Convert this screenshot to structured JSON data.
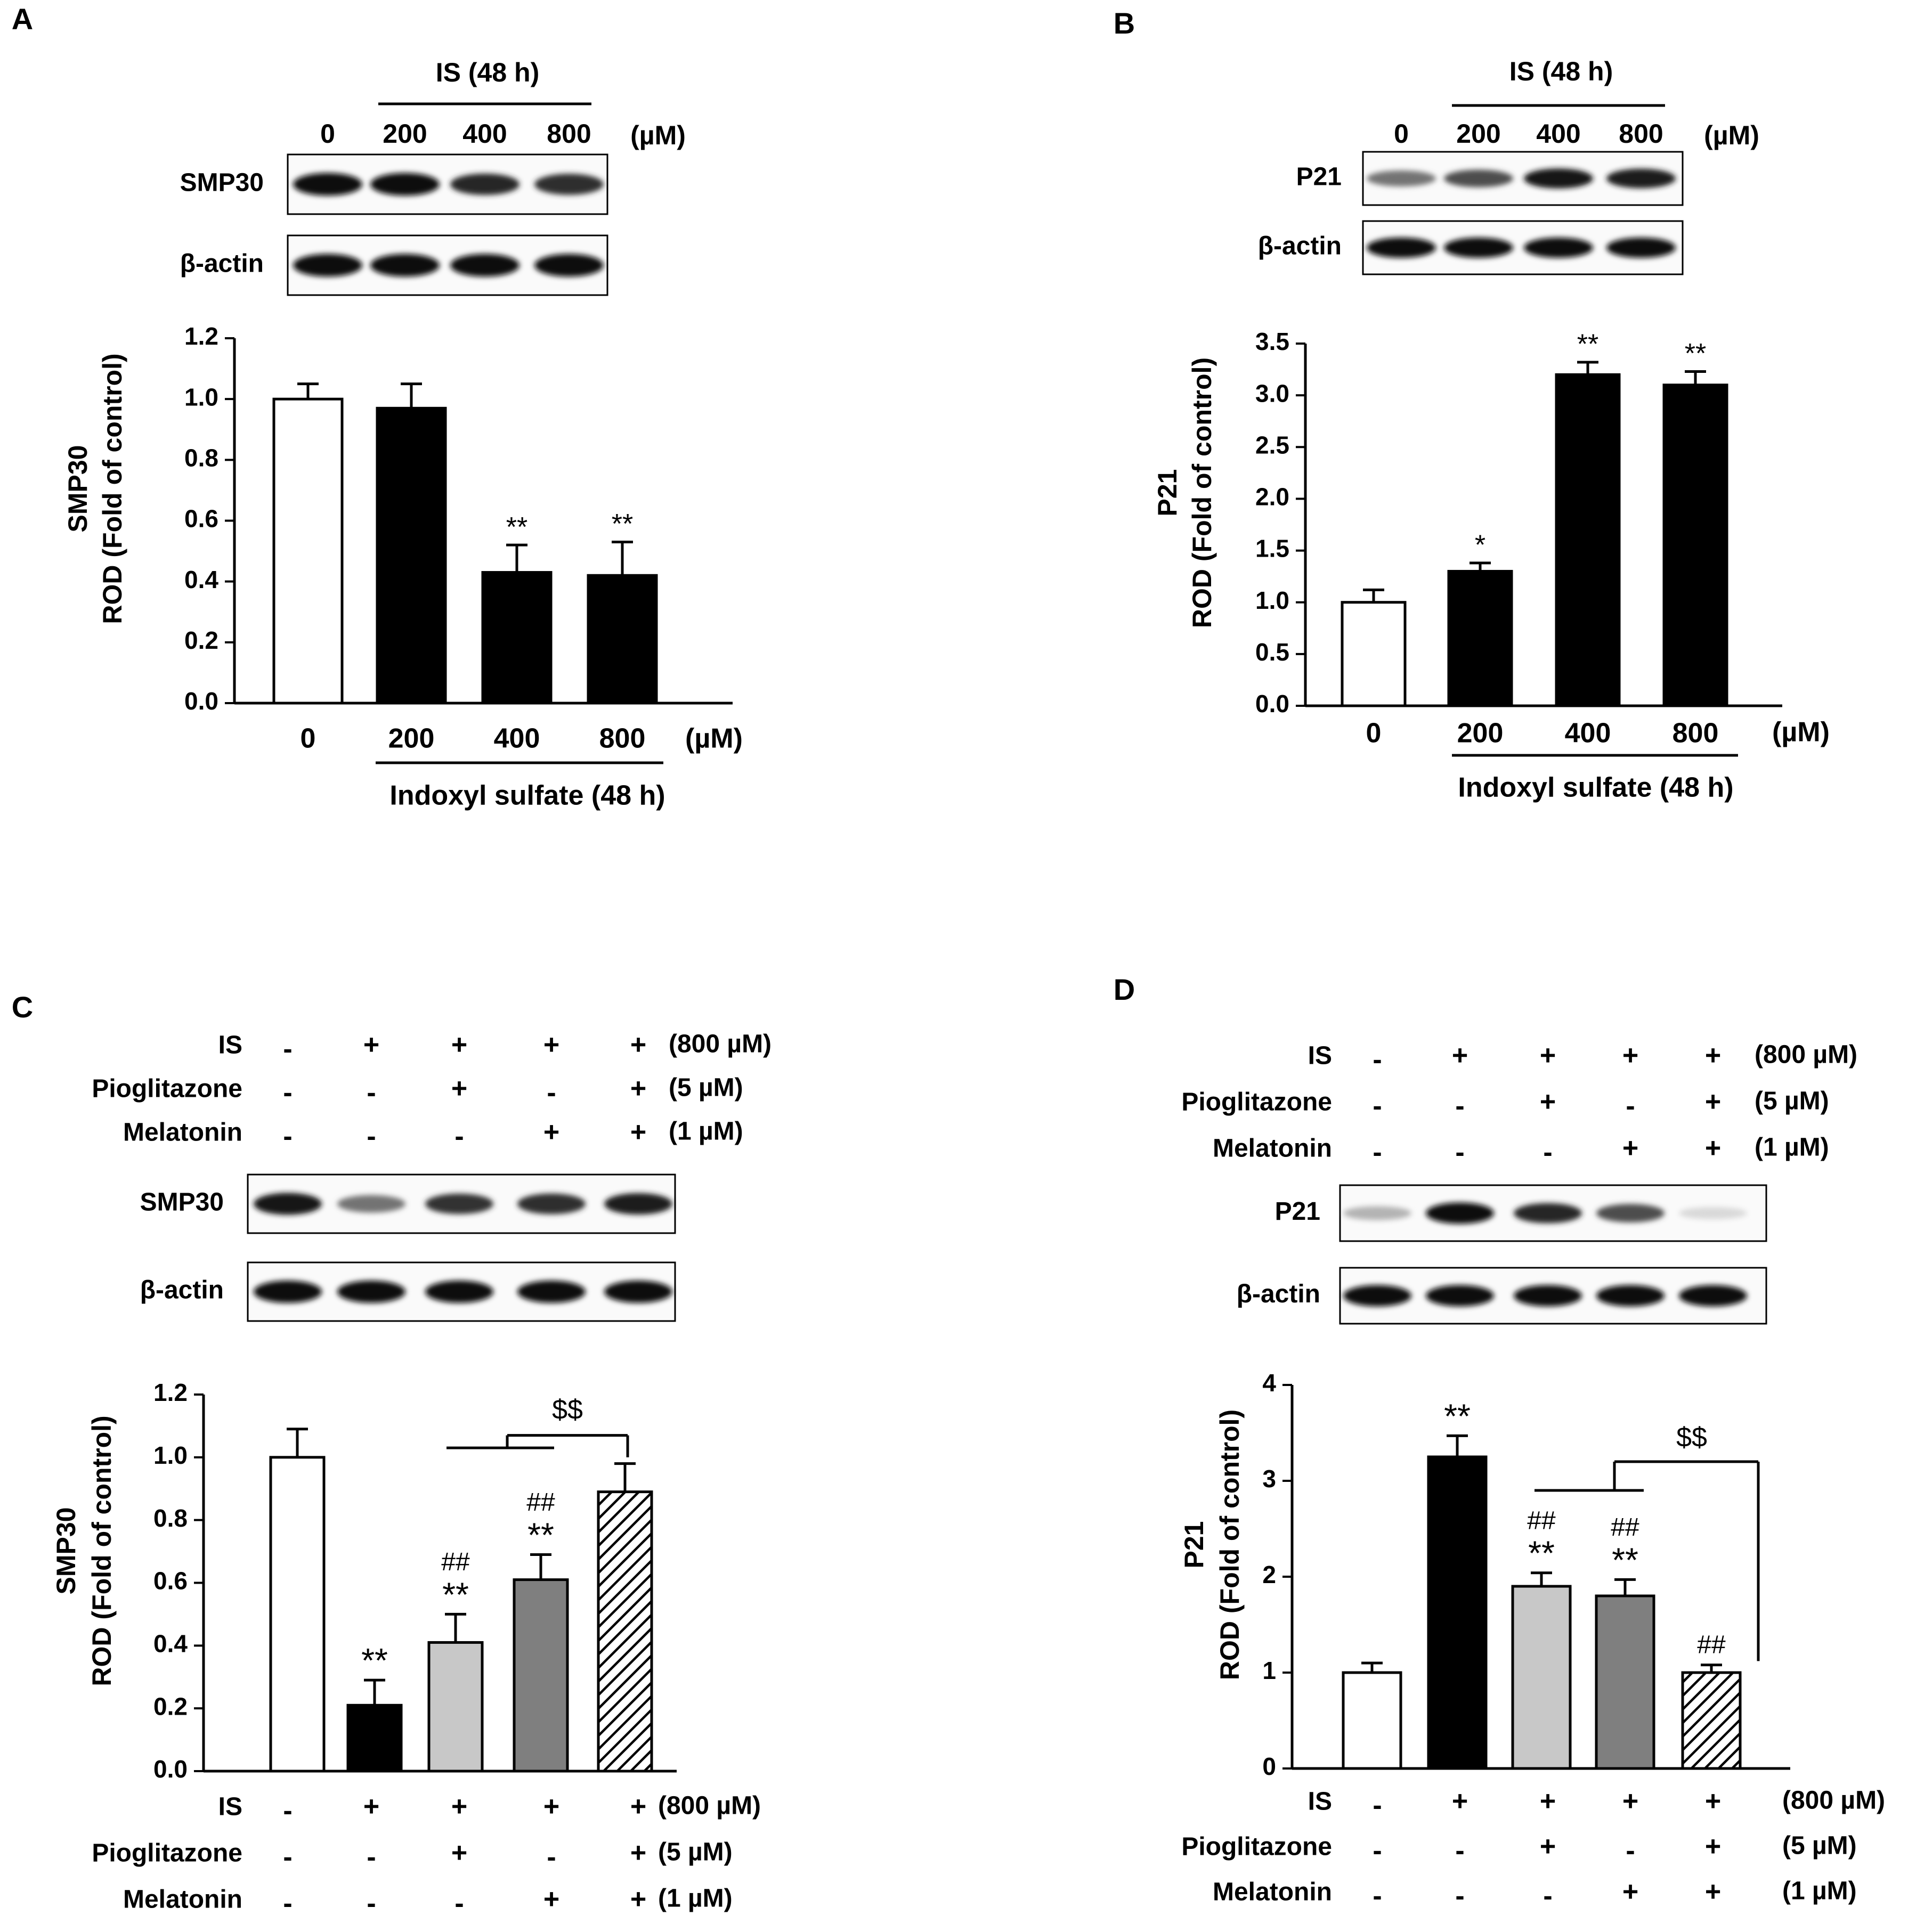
{
  "panels": [
    {
      "letter": "A",
      "blot": {
        "header_label": "IS (48 h)",
        "lane_labels": [
          "0",
          "200",
          "400",
          "800"
        ],
        "unit_label": "(µM)",
        "row_labels": [
          "SMP30",
          "β-actin"
        ],
        "band_intensity": [
          [
            0.95,
            0.95,
            0.85,
            0.82
          ],
          [
            0.95,
            0.95,
            0.95,
            0.95
          ]
        ]
      },
      "x_group_label": "Indoxyl sulfate (48 h)",
      "x_unit_label": "(µM)"
    },
    {
      "letter": "B",
      "blot": {
        "header_label": "IS (48 h)",
        "lane_labels": [
          "0",
          "200",
          "400",
          "800"
        ],
        "unit_label": "(µM)",
        "row_labels": [
          "P21",
          "β-actin"
        ],
        "band_intensity": [
          [
            0.55,
            0.7,
            0.92,
            0.88
          ],
          [
            0.95,
            0.95,
            0.95,
            0.95
          ]
        ]
      },
      "x_group_label": "Indoxyl sulfate (48 h)",
      "x_unit_label": "(µM)"
    },
    {
      "letter": "C",
      "treatment": {
        "rows": [
          {
            "label": "IS",
            "signs": [
              "-",
              "+",
              "+",
              "+",
              "+"
            ],
            "dose": "(800 µM)"
          },
          {
            "label": "Pioglitazone",
            "signs": [
              "-",
              "-",
              "+",
              "-",
              "+"
            ],
            "dose": "(5 µM)"
          },
          {
            "label": "Melatonin",
            "signs": [
              "-",
              "-",
              "-",
              "+",
              "+"
            ],
            "dose": "(1 µM)"
          }
        ]
      },
      "blot": {
        "row_labels": [
          "SMP30",
          "β-actin"
        ],
        "band_intensity": [
          [
            0.92,
            0.55,
            0.8,
            0.82,
            0.88
          ],
          [
            0.95,
            0.95,
            0.95,
            0.95,
            0.95
          ]
        ]
      },
      "bottom_treatment": {
        "rows": [
          {
            "label": "IS",
            "signs": [
              "-",
              "+",
              "+",
              "+",
              "+"
            ],
            "dose": "(800 µM)"
          },
          {
            "label": "Pioglitazone",
            "signs": [
              "-",
              "-",
              "+",
              "-",
              "+"
            ],
            "dose": "(5 µM)"
          },
          {
            "label": "Melatonin",
            "signs": [
              "-",
              "-",
              "-",
              "+",
              "+"
            ],
            "dose": "(1 µM)"
          }
        ]
      }
    },
    {
      "letter": "D",
      "treatment": {
        "rows": [
          {
            "label": "IS",
            "signs": [
              "-",
              "+",
              "+",
              "+",
              "+"
            ],
            "dose": "(800 µM)"
          },
          {
            "label": "Pioglitazone",
            "signs": [
              "-",
              "-",
              "+",
              "-",
              "+"
            ],
            "dose": "(5 µM)"
          },
          {
            "label": "Melatonin",
            "signs": [
              "-",
              "-",
              "-",
              "+",
              "+"
            ],
            "dose": "(1 µM)"
          }
        ]
      },
      "blot": {
        "row_labels": [
          "P21",
          "β-actin"
        ],
        "band_intensity": [
          [
            0.3,
            0.95,
            0.85,
            0.7,
            0.15
          ],
          [
            0.95,
            0.95,
            0.95,
            0.95,
            0.95
          ]
        ]
      },
      "bottom_treatment": {
        "rows": [
          {
            "label": "IS",
            "signs": [
              "-",
              "+",
              "+",
              "+",
              "+"
            ],
            "dose": "(800 µM)"
          },
          {
            "label": "Pioglitazone",
            "signs": [
              "-",
              "-",
              "+",
              "-",
              "+"
            ],
            "dose": "(5 µM)"
          },
          {
            "label": "Melatonin",
            "signs": [
              "-",
              "-",
              "-",
              "+",
              "+"
            ],
            "dose": "(1 µM)"
          }
        ]
      }
    }
  ],
  "chart_data": [
    {
      "panel": "A",
      "type": "bar",
      "categories": [
        "0",
        "200",
        "400",
        "800"
      ],
      "values": [
        1.0,
        0.97,
        0.43,
        0.42
      ],
      "errors": [
        0.05,
        0.08,
        0.09,
        0.11
      ],
      "annotations": [
        "",
        "",
        "**",
        "**"
      ],
      "bar_colors": [
        "#ffffff",
        "#000000",
        "#000000",
        "#000000"
      ],
      "ylabel_line1": "SMP30",
      "ylabel_line2": "ROD (Fold of control)",
      "ylim": [
        0,
        1.2
      ],
      "yticks": [
        "0.0",
        "0.2",
        "0.4",
        "0.6",
        "0.8",
        "1.0",
        "1.2"
      ]
    },
    {
      "panel": "B",
      "type": "bar",
      "categories": [
        "0",
        "200",
        "400",
        "800"
      ],
      "values": [
        1.0,
        1.3,
        3.2,
        3.1
      ],
      "errors": [
        0.12,
        0.08,
        0.12,
        0.13
      ],
      "annotations": [
        "",
        "*",
        "**",
        "**"
      ],
      "bar_colors": [
        "#ffffff",
        "#000000",
        "#000000",
        "#000000"
      ],
      "ylabel_line1": "P21",
      "ylabel_line2": "ROD (Fold of control)",
      "ylim": [
        0,
        3.5
      ],
      "yticks": [
        "0.0",
        "0.5",
        "1.0",
        "1.5",
        "2.0",
        "2.5",
        "3.0",
        "3.5"
      ]
    },
    {
      "panel": "C",
      "type": "bar",
      "values": [
        1.0,
        0.21,
        0.41,
        0.61,
        0.89
      ],
      "errors": [
        0.09,
        0.08,
        0.09,
        0.08,
        0.09
      ],
      "annotations_top": [
        "",
        "",
        "##",
        "##",
        ""
      ],
      "annotations_bottom": [
        "",
        "**",
        "**",
        "**",
        ""
      ],
      "bar_colors": [
        "#ffffff",
        "#000000",
        "#c8c8c8",
        "#7f7f7f",
        "hatch"
      ],
      "bracket_label": "$$",
      "ylabel_line1": "SMP30",
      "ylabel_line2": "ROD (Fold of control)",
      "ylim": [
        0,
        1.2
      ],
      "yticks": [
        "0.0",
        "0.2",
        "0.4",
        "0.6",
        "0.8",
        "1.0",
        "1.2"
      ]
    },
    {
      "panel": "D",
      "type": "bar",
      "values": [
        1.0,
        3.25,
        1.9,
        1.8,
        1.0
      ],
      "errors": [
        0.1,
        0.22,
        0.14,
        0.17,
        0.08
      ],
      "annotations_top": [
        "",
        "",
        "##",
        "##",
        "##"
      ],
      "annotations_bottom": [
        "",
        "**",
        "**",
        "**",
        ""
      ],
      "bar_colors": [
        "#ffffff",
        "#000000",
        "#c8c8c8",
        "#7f7f7f",
        "hatch"
      ],
      "bracket_label": "$$",
      "ylabel_line1": "P21",
      "ylabel_line2": "ROD (Fold of control)",
      "ylim": [
        0,
        4
      ],
      "yticks": [
        "0",
        "1",
        "2",
        "3",
        "4"
      ]
    }
  ]
}
